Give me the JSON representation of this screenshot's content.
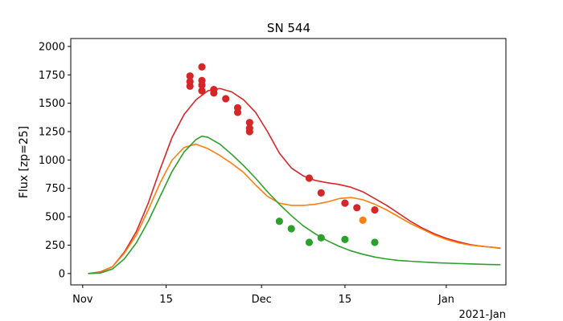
{
  "chart_data": {
    "type": "line",
    "title": "SN 544",
    "xlabel": "",
    "ylabel": "Flux [zp=25]",
    "x_offset_label": "2021-Jan",
    "xlim": [
      "2020-10-30",
      "2021-01-11"
    ],
    "ylim": [
      -100,
      2070
    ],
    "x_ticks": [
      {
        "date": "2020-11-01",
        "label": "Nov"
      },
      {
        "date": "2020-11-15",
        "label": "15"
      },
      {
        "date": "2020-12-01",
        "label": "Dec"
      },
      {
        "date": "2020-12-15",
        "label": "15"
      },
      {
        "date": "2021-01-01",
        "label": "Jan"
      }
    ],
    "y_ticks": [
      0,
      250,
      500,
      750,
      1000,
      1250,
      1500,
      1750,
      2000
    ],
    "grid": false,
    "legend": "none",
    "series": [
      {
        "color": "#d62728",
        "model": [
          [
            "2020-11-02",
            0
          ],
          [
            "2020-11-04",
            15
          ],
          [
            "2020-11-06",
            60
          ],
          [
            "2020-11-08",
            190
          ],
          [
            "2020-11-10",
            370
          ],
          [
            "2020-11-12",
            620
          ],
          [
            "2020-11-14",
            920
          ],
          [
            "2020-11-16",
            1200
          ],
          [
            "2020-11-18",
            1400
          ],
          [
            "2020-11-20",
            1530
          ],
          [
            "2020-11-22",
            1610
          ],
          [
            "2020-11-24",
            1630
          ],
          [
            "2020-11-26",
            1600
          ],
          [
            "2020-11-28",
            1530
          ],
          [
            "2020-11-30",
            1420
          ],
          [
            "2020-12-02",
            1250
          ],
          [
            "2020-12-04",
            1060
          ],
          [
            "2020-12-06",
            930
          ],
          [
            "2020-12-08",
            860
          ],
          [
            "2020-12-10",
            820
          ],
          [
            "2020-12-12",
            800
          ],
          [
            "2020-12-14",
            785
          ],
          [
            "2020-12-16",
            760
          ],
          [
            "2020-12-18",
            720
          ],
          [
            "2020-12-20",
            660
          ],
          [
            "2020-12-22",
            600
          ],
          [
            "2020-12-24",
            530
          ],
          [
            "2020-12-26",
            460
          ],
          [
            "2020-12-28",
            400
          ],
          [
            "2020-12-30",
            350
          ],
          [
            "2021-01-01",
            310
          ],
          [
            "2021-01-03",
            280
          ],
          [
            "2021-01-05",
            255
          ],
          [
            "2021-01-07",
            240
          ],
          [
            "2021-01-09",
            230
          ],
          [
            "2021-01-10",
            222
          ]
        ],
        "points": [
          [
            "2020-11-19",
            1650
          ],
          [
            "2020-11-19",
            1690
          ],
          [
            "2020-11-19",
            1740
          ],
          [
            "2020-11-21",
            1610
          ],
          [
            "2020-11-21",
            1660
          ],
          [
            "2020-11-21",
            1700
          ],
          [
            "2020-11-21",
            1820
          ],
          [
            "2020-11-23",
            1590
          ],
          [
            "2020-11-23",
            1620
          ],
          [
            "2020-11-25",
            1540
          ],
          [
            "2020-11-27",
            1460
          ],
          [
            "2020-11-27",
            1420
          ],
          [
            "2020-11-29",
            1330
          ],
          [
            "2020-11-29",
            1280
          ],
          [
            "2020-11-29",
            1250
          ],
          [
            "2020-12-09",
            840
          ],
          [
            "2020-12-11",
            710
          ],
          [
            "2020-12-15",
            620
          ],
          [
            "2020-12-17",
            580
          ],
          [
            "2020-12-20",
            560
          ]
        ]
      },
      {
        "color": "#ff7f0e",
        "model": [
          [
            "2020-11-02",
            0
          ],
          [
            "2020-11-04",
            10
          ],
          [
            "2020-11-06",
            60
          ],
          [
            "2020-11-08",
            180
          ],
          [
            "2020-11-10",
            340
          ],
          [
            "2020-11-12",
            560
          ],
          [
            "2020-11-14",
            800
          ],
          [
            "2020-11-16",
            1000
          ],
          [
            "2020-11-18",
            1110
          ],
          [
            "2020-11-20",
            1140
          ],
          [
            "2020-11-22",
            1100
          ],
          [
            "2020-11-24",
            1040
          ],
          [
            "2020-11-26",
            970
          ],
          [
            "2020-11-28",
            890
          ],
          [
            "2020-11-30",
            780
          ],
          [
            "2020-12-02",
            680
          ],
          [
            "2020-12-04",
            620
          ],
          [
            "2020-12-06",
            600
          ],
          [
            "2020-12-08",
            600
          ],
          [
            "2020-12-10",
            610
          ],
          [
            "2020-12-12",
            630
          ],
          [
            "2020-12-14",
            660
          ],
          [
            "2020-12-16",
            670
          ],
          [
            "2020-12-18",
            650
          ],
          [
            "2020-12-20",
            610
          ],
          [
            "2020-12-22",
            560
          ],
          [
            "2020-12-24",
            500
          ],
          [
            "2020-12-26",
            440
          ],
          [
            "2020-12-28",
            390
          ],
          [
            "2020-12-30",
            340
          ],
          [
            "2021-01-01",
            300
          ],
          [
            "2021-01-03",
            270
          ],
          [
            "2021-01-05",
            250
          ],
          [
            "2021-01-07",
            240
          ],
          [
            "2021-01-09",
            230
          ],
          [
            "2021-01-10",
            225
          ]
        ],
        "points": [
          [
            "2020-12-18",
            470
          ]
        ]
      },
      {
        "color": "#2ca02c",
        "model": [
          [
            "2020-11-02",
            0
          ],
          [
            "2020-11-04",
            5
          ],
          [
            "2020-11-06",
            40
          ],
          [
            "2020-11-08",
            130
          ],
          [
            "2020-11-10",
            270
          ],
          [
            "2020-11-12",
            460
          ],
          [
            "2020-11-14",
            680
          ],
          [
            "2020-11-16",
            900
          ],
          [
            "2020-11-18",
            1070
          ],
          [
            "2020-11-20",
            1180
          ],
          [
            "2020-11-21",
            1210
          ],
          [
            "2020-11-22",
            1200
          ],
          [
            "2020-11-24",
            1140
          ],
          [
            "2020-11-26",
            1050
          ],
          [
            "2020-11-28",
            950
          ],
          [
            "2020-11-30",
            840
          ],
          [
            "2020-12-02",
            720
          ],
          [
            "2020-12-04",
            610
          ],
          [
            "2020-12-06",
            510
          ],
          [
            "2020-12-08",
            420
          ],
          [
            "2020-12-10",
            350
          ],
          [
            "2020-12-12",
            290
          ],
          [
            "2020-12-14",
            240
          ],
          [
            "2020-12-16",
            200
          ],
          [
            "2020-12-18",
            170
          ],
          [
            "2020-12-20",
            145
          ],
          [
            "2020-12-22",
            128
          ],
          [
            "2020-12-24",
            115
          ],
          [
            "2020-12-27",
            105
          ],
          [
            "2020-12-30",
            96
          ],
          [
            "2021-01-02",
            90
          ],
          [
            "2021-01-05",
            85
          ],
          [
            "2021-01-08",
            80
          ],
          [
            "2021-01-10",
            78
          ]
        ],
        "points": [
          [
            "2020-12-04",
            460
          ],
          [
            "2020-12-06",
            395
          ],
          [
            "2020-12-09",
            275
          ],
          [
            "2020-12-11",
            315
          ],
          [
            "2020-12-15",
            300
          ],
          [
            "2020-12-20",
            275
          ]
        ]
      }
    ]
  }
}
